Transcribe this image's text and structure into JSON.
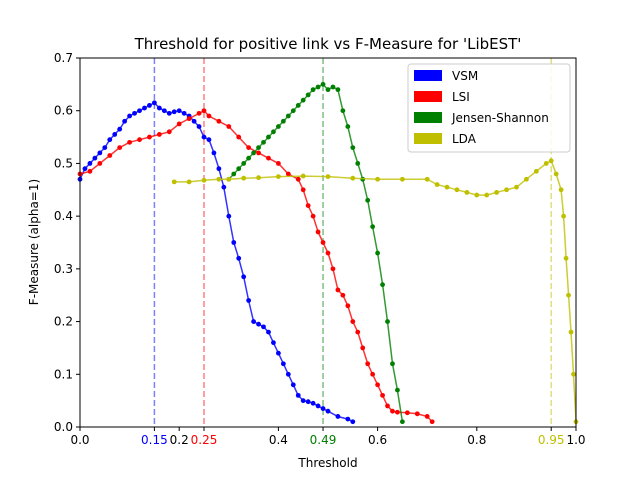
{
  "chart_data": {
    "type": "line",
    "title": "Threshold for positive link vs F-Measure for 'LibEST'",
    "xlabel": "Threshold",
    "ylabel": "F-Measure (alpha=1)",
    "xlim": [
      0.0,
      1.0
    ],
    "ylim": [
      0.0,
      0.7
    ],
    "xticks": [
      {
        "value": 0.0,
        "label": "0.0",
        "color": "#000000"
      },
      {
        "value": 0.15,
        "label": "0.15",
        "color": "#0000ff"
      },
      {
        "value": 0.2,
        "label": "0.2",
        "color": "#000000"
      },
      {
        "value": 0.25,
        "label": "0.25",
        "color": "#ff0000"
      },
      {
        "value": 0.4,
        "label": "0.4",
        "color": "#000000"
      },
      {
        "value": 0.49,
        "label": "0.49",
        "color": "#008000"
      },
      {
        "value": 0.6,
        "label": "0.6",
        "color": "#000000"
      },
      {
        "value": 0.8,
        "label": "0.8",
        "color": "#000000"
      },
      {
        "value": 0.95,
        "label": "0.95",
        "color": "#bfbf00"
      },
      {
        "value": 1.0,
        "label": "1.0",
        "color": "#000000"
      }
    ],
    "yticks": [
      {
        "value": 0.0,
        "label": "0.0"
      },
      {
        "value": 0.1,
        "label": "0.1"
      },
      {
        "value": 0.2,
        "label": "0.2"
      },
      {
        "value": 0.3,
        "label": "0.3"
      },
      {
        "value": 0.4,
        "label": "0.4"
      },
      {
        "value": 0.5,
        "label": "0.5"
      },
      {
        "value": 0.6,
        "label": "0.6"
      },
      {
        "value": 0.7,
        "label": "0.7"
      }
    ],
    "grid": false,
    "legend_position": "top-right",
    "vlines": [
      {
        "x": 0.15,
        "color": "#0000ff"
      },
      {
        "x": 0.25,
        "color": "#ff0000"
      },
      {
        "x": 0.49,
        "color": "#008000"
      },
      {
        "x": 0.95,
        "color": "#bfbf00"
      }
    ],
    "series": [
      {
        "name": "VSM",
        "color": "#0000ff",
        "x": [
          0.0,
          0.01,
          0.02,
          0.03,
          0.04,
          0.05,
          0.06,
          0.07,
          0.08,
          0.09,
          0.1,
          0.11,
          0.12,
          0.13,
          0.14,
          0.15,
          0.16,
          0.17,
          0.18,
          0.19,
          0.2,
          0.21,
          0.22,
          0.23,
          0.24,
          0.25,
          0.26,
          0.27,
          0.28,
          0.29,
          0.3,
          0.31,
          0.32,
          0.33,
          0.34,
          0.35,
          0.36,
          0.37,
          0.38,
          0.39,
          0.4,
          0.41,
          0.42,
          0.43,
          0.44,
          0.45,
          0.46,
          0.47,
          0.48,
          0.49,
          0.5,
          0.52,
          0.54,
          0.55
        ],
        "y": [
          0.47,
          0.49,
          0.5,
          0.51,
          0.52,
          0.53,
          0.545,
          0.555,
          0.565,
          0.58,
          0.59,
          0.595,
          0.6,
          0.605,
          0.61,
          0.615,
          0.605,
          0.6,
          0.595,
          0.598,
          0.6,
          0.595,
          0.59,
          0.58,
          0.57,
          0.55,
          0.545,
          0.52,
          0.49,
          0.455,
          0.4,
          0.35,
          0.32,
          0.285,
          0.24,
          0.2,
          0.195,
          0.19,
          0.18,
          0.16,
          0.14,
          0.12,
          0.1,
          0.08,
          0.06,
          0.05,
          0.048,
          0.045,
          0.04,
          0.035,
          0.03,
          0.02,
          0.015,
          0.01
        ]
      },
      {
        "name": "LSI",
        "color": "#ff0000",
        "x": [
          0.0,
          0.02,
          0.04,
          0.06,
          0.08,
          0.1,
          0.12,
          0.14,
          0.16,
          0.18,
          0.2,
          0.22,
          0.24,
          0.25,
          0.26,
          0.28,
          0.3,
          0.32,
          0.34,
          0.36,
          0.38,
          0.4,
          0.42,
          0.44,
          0.45,
          0.46,
          0.47,
          0.48,
          0.49,
          0.5,
          0.51,
          0.52,
          0.53,
          0.54,
          0.55,
          0.56,
          0.57,
          0.58,
          0.59,
          0.6,
          0.61,
          0.62,
          0.63,
          0.64,
          0.66,
          0.68,
          0.7,
          0.71
        ],
        "y": [
          0.48,
          0.485,
          0.5,
          0.515,
          0.53,
          0.54,
          0.545,
          0.55,
          0.555,
          0.56,
          0.575,
          0.585,
          0.595,
          0.6,
          0.59,
          0.58,
          0.57,
          0.55,
          0.53,
          0.52,
          0.51,
          0.5,
          0.48,
          0.47,
          0.45,
          0.42,
          0.4,
          0.37,
          0.35,
          0.33,
          0.3,
          0.26,
          0.25,
          0.23,
          0.2,
          0.18,
          0.15,
          0.12,
          0.1,
          0.08,
          0.06,
          0.04,
          0.03,
          0.028,
          0.027,
          0.025,
          0.02,
          0.01
        ]
      },
      {
        "name": "Jensen-Shannon",
        "color": "#008000",
        "x": [
          0.3,
          0.31,
          0.32,
          0.33,
          0.34,
          0.35,
          0.36,
          0.37,
          0.38,
          0.39,
          0.4,
          0.41,
          0.42,
          0.43,
          0.44,
          0.45,
          0.46,
          0.47,
          0.48,
          0.49,
          0.5,
          0.51,
          0.52,
          0.53,
          0.54,
          0.55,
          0.56,
          0.57,
          0.58,
          0.59,
          0.6,
          0.61,
          0.62,
          0.63,
          0.64,
          0.65
        ],
        "y": [
          0.47,
          0.48,
          0.49,
          0.5,
          0.51,
          0.52,
          0.53,
          0.54,
          0.55,
          0.56,
          0.57,
          0.58,
          0.59,
          0.6,
          0.61,
          0.62,
          0.63,
          0.64,
          0.645,
          0.65,
          0.64,
          0.645,
          0.64,
          0.6,
          0.57,
          0.53,
          0.5,
          0.47,
          0.43,
          0.38,
          0.33,
          0.27,
          0.2,
          0.12,
          0.07,
          0.01
        ]
      },
      {
        "name": "LDA",
        "color": "#bfbf00",
        "x": [
          0.19,
          0.22,
          0.25,
          0.28,
          0.3,
          0.33,
          0.36,
          0.4,
          0.45,
          0.5,
          0.55,
          0.6,
          0.65,
          0.7,
          0.72,
          0.74,
          0.76,
          0.78,
          0.8,
          0.82,
          0.84,
          0.86,
          0.88,
          0.9,
          0.92,
          0.94,
          0.95,
          0.96,
          0.97,
          0.975,
          0.98,
          0.985,
          0.99,
          0.995,
          1.0
        ],
        "y": [
          0.465,
          0.465,
          0.468,
          0.47,
          0.47,
          0.472,
          0.473,
          0.475,
          0.476,
          0.475,
          0.472,
          0.47,
          0.47,
          0.47,
          0.46,
          0.455,
          0.45,
          0.445,
          0.44,
          0.44,
          0.445,
          0.45,
          0.455,
          0.47,
          0.485,
          0.5,
          0.505,
          0.48,
          0.45,
          0.4,
          0.32,
          0.25,
          0.18,
          0.1,
          0.01
        ]
      }
    ]
  }
}
